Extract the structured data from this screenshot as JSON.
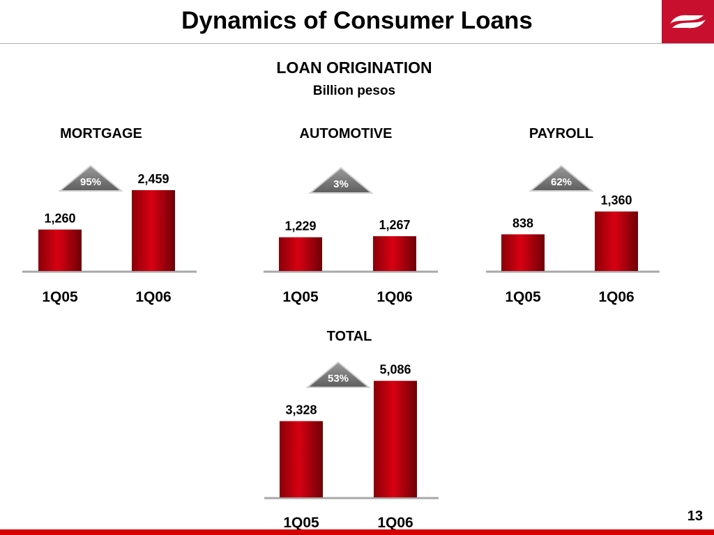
{
  "slide": {
    "title": "Dynamics of Consumer Loans",
    "heading": "LOAN ORIGINATION",
    "subheading": "Billion pesos",
    "page_number": "13",
    "bar_color": "#c40010",
    "badge_color": "#7a7a7a",
    "accent_color": "#d40000"
  },
  "chart_data": [
    {
      "type": "bar",
      "title": "MORTGAGE",
      "categories": [
        "1Q05",
        "1Q06"
      ],
      "values": [
        1260,
        2459
      ],
      "value_labels": [
        "1,260",
        "2,459"
      ],
      "growth_badge": "95%"
    },
    {
      "type": "bar",
      "title": "AUTOMOTIVE",
      "categories": [
        "1Q05",
        "1Q06"
      ],
      "values": [
        1229,
        1267
      ],
      "value_labels": [
        "1,229",
        "1,267"
      ],
      "growth_badge": "3%"
    },
    {
      "type": "bar",
      "title": "PAYROLL",
      "categories": [
        "1Q05",
        "1Q06"
      ],
      "values": [
        838,
        1360
      ],
      "value_labels": [
        "838",
        "1,360"
      ],
      "growth_badge": "62%"
    },
    {
      "type": "bar",
      "title": "TOTAL",
      "categories": [
        "1Q05",
        "1Q06"
      ],
      "values": [
        3328,
        5086
      ],
      "value_labels": [
        "3,328",
        "5,086"
      ],
      "growth_badge": "53%"
    }
  ]
}
